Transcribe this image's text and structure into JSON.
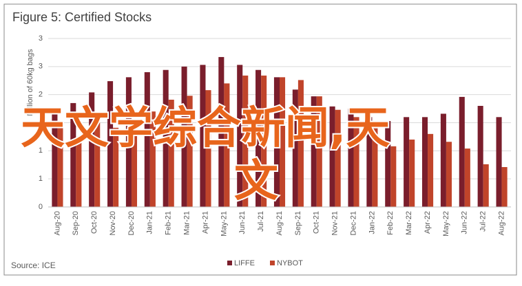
{
  "chart_data": {
    "type": "bar",
    "title": "Figure 5: Certified Stocks",
    "y_label": "Million of 60kg bags",
    "source": "Source: ICE",
    "categories": [
      "Aug-20",
      "Sep-20",
      "Oct-20",
      "Nov-20",
      "Dec-20",
      "Jan-21",
      "Feb-21",
      "Mar-21",
      "Apr-21",
      "May-21",
      "Jun-21",
      "Jul-21",
      "Aug-21",
      "Sep-21",
      "Oct-21",
      "Nov-21",
      "Dec-21",
      "Jan-22",
      "Feb-22",
      "Mar-22",
      "Apr-22",
      "May-22",
      "Jun-22",
      "Jul-22",
      "Aug-22"
    ],
    "series": [
      {
        "name": "LIFFE",
        "color": "#7a1e2c",
        "values": [
          1.7,
          1.85,
          2.04,
          2.24,
          2.31,
          2.4,
          2.44,
          2.5,
          2.53,
          2.67,
          2.53,
          2.44,
          2.31,
          2.09,
          1.97,
          1.79,
          1.75,
          1.6,
          1.53,
          1.6,
          1.6,
          1.66,
          1.96,
          1.8,
          1.6
        ]
      },
      {
        "name": "NYBOT",
        "color": "#c0442a",
        "values": [
          1.46,
          1.24,
          1.5,
          1.41,
          1.52,
          1.7,
          1.91,
          1.98,
          2.08,
          2.2,
          2.34,
          2.34,
          2.31,
          2.26,
          1.97,
          1.73,
          1.6,
          1.4,
          1.08,
          1.2,
          1.3,
          1.16,
          1.04,
          0.76,
          0.71
        ]
      }
    ],
    "ylim": [
      0,
      3
    ],
    "yticks": [
      0,
      {
        "value": 0.5,
        "label": "1"
      },
      1,
      {
        "value": 1.5,
        "label": "2"
      },
      2,
      {
        "value": 2.5,
        "label": "3"
      },
      3
    ],
    "grid": true,
    "legend": "bottom"
  },
  "overlay_text": [
    "天文学综合新闻,天",
    "文"
  ]
}
